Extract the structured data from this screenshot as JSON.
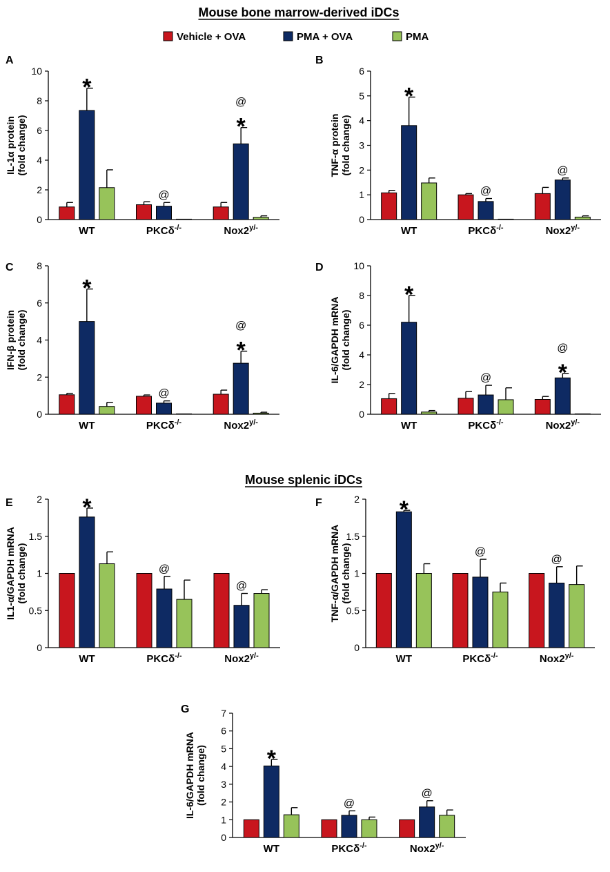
{
  "section_titles": {
    "bone_marrow": "Mouse bone marrow-derived iDCs",
    "splenic": "Mouse splenic iDCs"
  },
  "legend": [
    {
      "label": "Vehicle + OVA",
      "color": "#c8161e"
    },
    {
      "label": "PMA + OVA",
      "color": "#0e2a63"
    },
    {
      "label": "PMA",
      "color": "#97c35a"
    }
  ],
  "chart_data": [
    {
      "panel": "A",
      "type": "bar",
      "ylabel": [
        "IL-1α protein",
        "(fold change)"
      ],
      "ylim": [
        0,
        10
      ],
      "yticks": [
        "0",
        "2",
        "4",
        "6",
        "8",
        "10"
      ],
      "categories": [
        "WT",
        "PKCδ",
        "Nox2"
      ],
      "category_superscripts": [
        "",
        "-/-",
        "y/-"
      ],
      "series": [
        {
          "name": "Vehicle + OVA",
          "values": [
            0.85,
            1.0,
            0.85
          ],
          "errors": [
            0.3,
            0.2,
            0.3
          ]
        },
        {
          "name": "PMA + OVA",
          "values": [
            7.35,
            0.9,
            5.1
          ],
          "errors": [
            1.5,
            0.25,
            1.1
          ]
        },
        {
          "name": "PMA",
          "values": [
            2.15,
            0.0,
            0.15
          ],
          "errors": [
            1.2,
            0.0,
            0.1
          ]
        }
      ],
      "annotations": [
        {
          "category": 0,
          "series": 1,
          "marks": [
            "*"
          ]
        },
        {
          "category": 1,
          "series": 1,
          "marks": [
            "@"
          ]
        },
        {
          "category": 2,
          "series": 1,
          "marks": [
            "*",
            "@"
          ]
        }
      ]
    },
    {
      "panel": "B",
      "type": "bar",
      "ylabel": [
        "TNF-α protein",
        "(fold change)"
      ],
      "ylim": [
        0,
        6
      ],
      "yticks": [
        "0",
        "1",
        "2",
        "3",
        "4",
        "5",
        "6"
      ],
      "categories": [
        "WT",
        "PKCδ",
        "Nox2"
      ],
      "category_superscripts": [
        "",
        "-/-",
        "y/-"
      ],
      "series": [
        {
          "name": "Vehicle + OVA",
          "values": [
            1.08,
            1.0,
            1.05
          ],
          "errors": [
            0.1,
            0.05,
            0.25
          ]
        },
        {
          "name": "PMA + OVA",
          "values": [
            3.8,
            0.73,
            1.6
          ],
          "errors": [
            1.15,
            0.12,
            0.08
          ]
        },
        {
          "name": "PMA",
          "values": [
            1.48,
            0.0,
            0.1
          ],
          "errors": [
            0.2,
            0.0,
            0.05
          ]
        }
      ],
      "annotations": [
        {
          "category": 0,
          "series": 1,
          "marks": [
            "*"
          ]
        },
        {
          "category": 1,
          "series": 1,
          "marks": [
            "@"
          ]
        },
        {
          "category": 2,
          "series": 1,
          "marks": [
            "@"
          ]
        }
      ]
    },
    {
      "panel": "C",
      "type": "bar",
      "ylabel": [
        "IFN-β protein",
        "(fold change)"
      ],
      "ylim": [
        0,
        8
      ],
      "yticks": [
        "0",
        "2",
        "4",
        "6",
        "8"
      ],
      "categories": [
        "WT",
        "PKCδ",
        "Nox2"
      ],
      "category_superscripts": [
        "",
        "-/-",
        "y/-"
      ],
      "series": [
        {
          "name": "Vehicle + OVA",
          "values": [
            1.05,
            0.97,
            1.08
          ],
          "errors": [
            0.08,
            0.07,
            0.22
          ]
        },
        {
          "name": "PMA + OVA",
          "values": [
            5.0,
            0.6,
            2.75
          ],
          "errors": [
            1.75,
            0.12,
            0.65
          ]
        },
        {
          "name": "PMA",
          "values": [
            0.42,
            0.02,
            0.06
          ],
          "errors": [
            0.22,
            0.0,
            0.05
          ]
        }
      ],
      "annotations": [
        {
          "category": 0,
          "series": 1,
          "marks": [
            "*"
          ]
        },
        {
          "category": 1,
          "series": 1,
          "marks": [
            "@"
          ]
        },
        {
          "category": 2,
          "series": 1,
          "marks": [
            "*",
            "@"
          ]
        }
      ]
    },
    {
      "panel": "D",
      "type": "bar",
      "ylabel": [
        "IL-6/GAPDH mRNA",
        "(fold change)"
      ],
      "ylim": [
        0,
        10
      ],
      "yticks": [
        "0",
        "2",
        "4",
        "6",
        "8",
        "10"
      ],
      "categories": [
        "WT",
        "PKCδ",
        "Nox2"
      ],
      "category_superscripts": [
        "",
        "-/-",
        "y/-"
      ],
      "series": [
        {
          "name": "Vehicle + OVA",
          "values": [
            1.05,
            1.08,
            1.0
          ],
          "errors": [
            0.35,
            0.45,
            0.2
          ]
        },
        {
          "name": "PMA + OVA",
          "values": [
            6.2,
            1.3,
            2.45
          ],
          "errors": [
            1.8,
            0.65,
            0.3
          ]
        },
        {
          "name": "PMA",
          "values": [
            0.15,
            0.98,
            0.02
          ],
          "errors": [
            0.1,
            0.8,
            0.0
          ]
        }
      ],
      "annotations": [
        {
          "category": 0,
          "series": 1,
          "marks": [
            "*"
          ]
        },
        {
          "category": 1,
          "series": 1,
          "marks": [
            "@"
          ]
        },
        {
          "category": 2,
          "series": 1,
          "marks": [
            "*",
            "@"
          ]
        }
      ]
    },
    {
      "panel": "E",
      "type": "bar",
      "ylabel": [
        "IL1-α/GAPDH mRNA",
        "(fold change)"
      ],
      "ylim": [
        0,
        2
      ],
      "yticks": [
        "0",
        "0.5",
        "1",
        "1.5",
        "2"
      ],
      "categories": [
        "WT",
        "PKCδ",
        "Nox2"
      ],
      "category_superscripts": [
        "",
        "-/-",
        "y/-"
      ],
      "series": [
        {
          "name": "Vehicle + OVA",
          "values": [
            1.0,
            1.0,
            1.0
          ],
          "errors": [
            0.0,
            0.0,
            0.0
          ]
        },
        {
          "name": "PMA + OVA",
          "values": [
            1.76,
            0.79,
            0.57
          ],
          "errors": [
            0.12,
            0.17,
            0.16
          ]
        },
        {
          "name": "PMA",
          "values": [
            1.13,
            0.65,
            0.73
          ],
          "errors": [
            0.16,
            0.26,
            0.05
          ]
        }
      ],
      "annotations": [
        {
          "category": 0,
          "series": 1,
          "marks": [
            "*"
          ]
        },
        {
          "category": 1,
          "series": 1,
          "marks": [
            "@"
          ]
        },
        {
          "category": 2,
          "series": 1,
          "marks": [
            "@"
          ]
        }
      ]
    },
    {
      "panel": "F",
      "type": "bar",
      "ylabel": [
        "TNF-α/GAPDH mRNA",
        "(fold change)"
      ],
      "ylim": [
        0,
        2
      ],
      "yticks": [
        "0",
        "0.5",
        "1",
        "1.5",
        "2"
      ],
      "categories": [
        "WT",
        "PKCδ",
        "Nox2"
      ],
      "category_superscripts": [
        "",
        "-/-",
        "y/-"
      ],
      "series": [
        {
          "name": "Vehicle + OVA",
          "values": [
            1.0,
            1.0,
            1.0
          ],
          "errors": [
            0.0,
            0.0,
            0.0
          ]
        },
        {
          "name": "PMA + OVA",
          "values": [
            1.83,
            0.95,
            0.87
          ],
          "errors": [
            0.02,
            0.24,
            0.22
          ]
        },
        {
          "name": "PMA",
          "values": [
            1.0,
            0.75,
            0.85
          ],
          "errors": [
            0.13,
            0.12,
            0.25
          ]
        }
      ],
      "annotations": [
        {
          "category": 0,
          "series": 1,
          "marks": [
            "*"
          ]
        },
        {
          "category": 1,
          "series": 1,
          "marks": [
            "@"
          ]
        },
        {
          "category": 2,
          "series": 1,
          "marks": [
            "@"
          ]
        }
      ]
    },
    {
      "panel": "G",
      "type": "bar",
      "ylabel": [
        "IL-6/GAPDH mRNA",
        "(fold change)"
      ],
      "ylim": [
        0,
        7
      ],
      "yticks": [
        "0",
        "1",
        "2",
        "3",
        "4",
        "5",
        "6",
        "7"
      ],
      "categories": [
        "WT",
        "PKCδ",
        "Nox2"
      ],
      "category_superscripts": [
        "",
        "-/-",
        "y/-"
      ],
      "series": [
        {
          "name": "Vehicle + OVA",
          "values": [
            1.0,
            1.0,
            1.0
          ],
          "errors": [
            0.0,
            0.0,
            0.0
          ]
        },
        {
          "name": "PMA + OVA",
          "values": [
            4.03,
            1.25,
            1.72
          ],
          "errors": [
            0.37,
            0.25,
            0.35
          ]
        },
        {
          "name": "PMA",
          "values": [
            1.28,
            1.0,
            1.25
          ],
          "errors": [
            0.4,
            0.15,
            0.3
          ]
        }
      ],
      "annotations": [
        {
          "category": 0,
          "series": 1,
          "marks": [
            "*"
          ]
        },
        {
          "category": 1,
          "series": 1,
          "marks": [
            "@"
          ]
        },
        {
          "category": 2,
          "series": 1,
          "marks": [
            "@"
          ]
        }
      ]
    }
  ]
}
